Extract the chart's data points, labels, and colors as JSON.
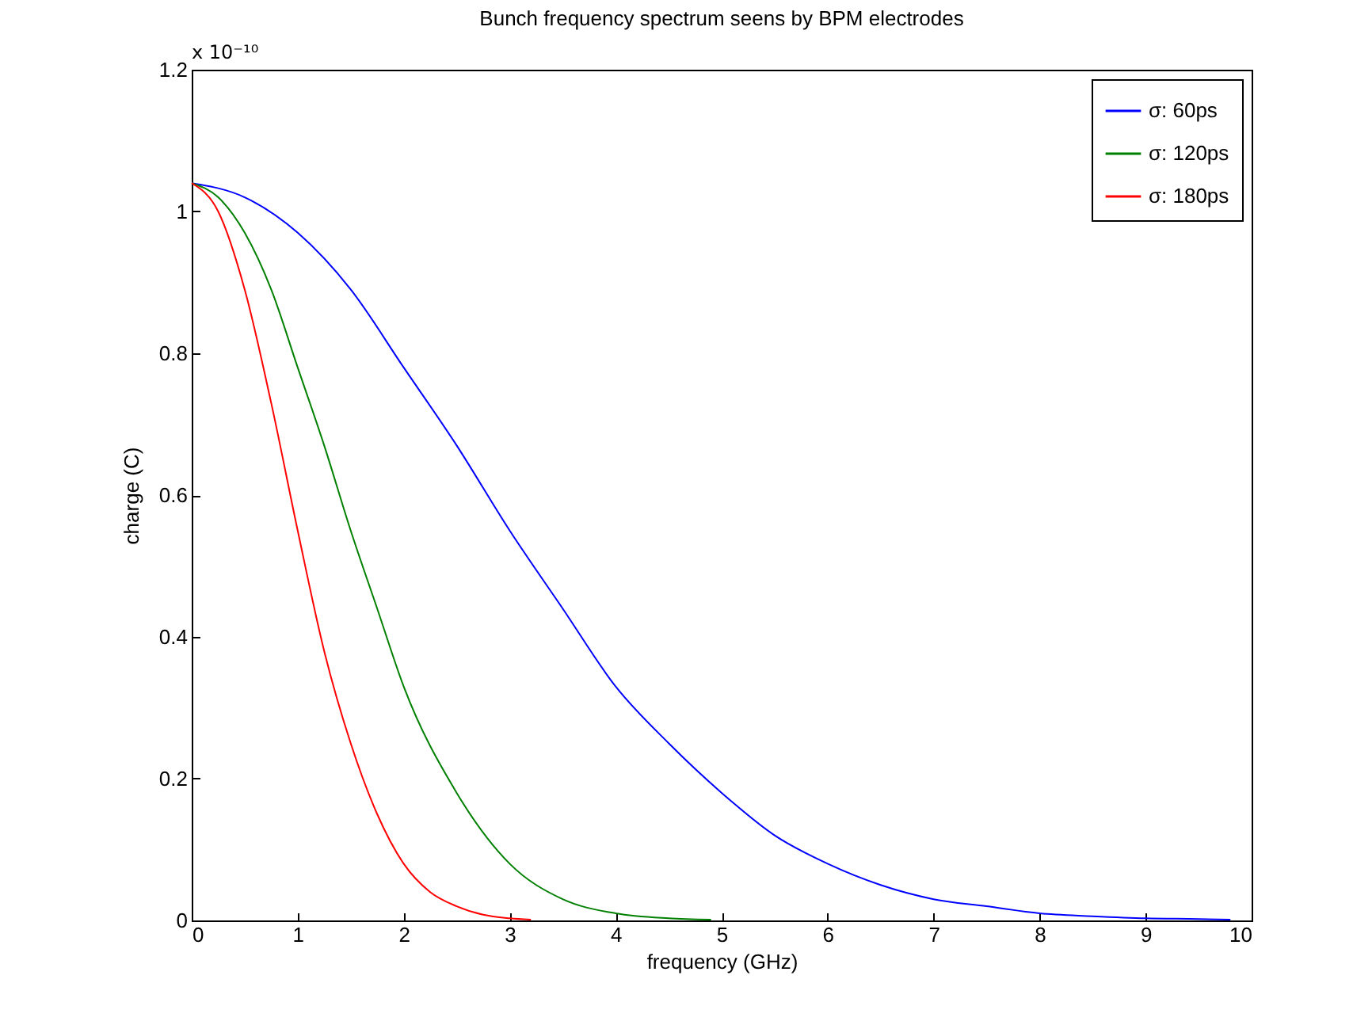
{
  "chart_data": {
    "type": "line",
    "title": "Bunch frequency spectrum seens by BPM electrodes",
    "xlabel": "frequency (GHz)",
    "ylabel": "charge (C)",
    "annotations": [
      "x 10⁻¹⁰"
    ],
    "xlim": [
      0,
      10
    ],
    "xticks": [
      0,
      1,
      2,
      3,
      4,
      5,
      6,
      7,
      8,
      9,
      10
    ],
    "ylim": [
      0,
      1.2
    ],
    "yticks": [
      0,
      0.2,
      0.4,
      0.6,
      0.8,
      1,
      1.2
    ],
    "grid": false,
    "legend": "top right",
    "marker": "none",
    "line_style": "solid",
    "series": [
      {
        "name": "σ: 60ps",
        "color": "#0000ff",
        "x": [
          0,
          0.5,
          1,
          1.5,
          2,
          2.5,
          3,
          3.5,
          4,
          4.5,
          5,
          5.5,
          6,
          6.5,
          7,
          7.5,
          8,
          8.5,
          9,
          9.5,
          9.8
        ],
        "values": [
          1.04,
          1.02,
          0.97,
          0.89,
          0.78,
          0.67,
          0.55,
          0.44,
          0.33,
          0.25,
          0.18,
          0.12,
          0.08,
          0.05,
          0.03,
          0.02,
          0.01,
          0.006,
          0.003,
          0.002,
          0.001
        ]
      },
      {
        "name": "σ: 120ps",
        "color": "#008000",
        "x": [
          0,
          0.25,
          0.5,
          0.75,
          1,
          1.25,
          1.5,
          1.75,
          2,
          2.5,
          3,
          3.5,
          4,
          4.5,
          4.9
        ],
        "values": [
          1.04,
          1.02,
          0.97,
          0.89,
          0.78,
          0.67,
          0.55,
          0.44,
          0.33,
          0.18,
          0.08,
          0.03,
          0.01,
          0.003,
          0.001
        ]
      },
      {
        "name": "σ: 180ps",
        "color": "#ff0000",
        "x": [
          0,
          0.25,
          0.5,
          0.75,
          1,
          1.25,
          1.5,
          1.75,
          2,
          2.25,
          2.5,
          2.75,
          3,
          3.2
        ],
        "values": [
          1.04,
          1.0,
          0.89,
          0.73,
          0.55,
          0.38,
          0.25,
          0.15,
          0.08,
          0.04,
          0.02,
          0.008,
          0.003,
          0.001
        ]
      }
    ]
  }
}
